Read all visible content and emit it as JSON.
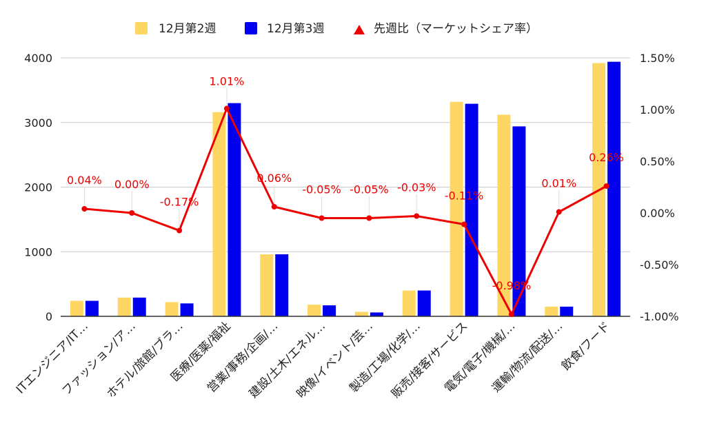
{
  "chart_data": {
    "type": "bar",
    "categories": [
      "ITエンジニア/IT…",
      "ファッション/ア…",
      "ホテル/旅館/ブラ…",
      "医療/医薬/福祉",
      "営業/事務/企画/…",
      "建設/土木/エネル…",
      "映像/イベント/芸…",
      "製造/工場/化学/…",
      "販売/接客/サービス",
      "電気/電子/機械/…",
      "運輸/物流/配送/…",
      "飲食/フード"
    ],
    "series": [
      {
        "name": "12月第2週",
        "type": "bar",
        "axis": "left",
        "color": "#FDD663",
        "values": [
          240,
          290,
          220,
          3160,
          960,
          180,
          70,
          400,
          3320,
          3120,
          150,
          3920
        ]
      },
      {
        "name": "12月第3週",
        "type": "bar",
        "axis": "left",
        "color": "#0000EE",
        "values": [
          240,
          290,
          200,
          3300,
          960,
          170,
          60,
          400,
          3290,
          2940,
          150,
          3940
        ]
      },
      {
        "name": "先週比（マーケットシェア率）",
        "type": "line",
        "axis": "right",
        "color": "#EE0000",
        "values": [
          0.04,
          0.0,
          -0.17,
          1.01,
          0.06,
          -0.05,
          -0.05,
          -0.03,
          -0.11,
          -0.98,
          0.01,
          0.26
        ],
        "labels": [
          "0.04%",
          "0.00%",
          "-0.17%",
          "1.01%",
          "0.06%",
          "-0.05%",
          "-0.05%",
          "-0.03%",
          "-0.11%",
          "-0.98%",
          "0.01%",
          "0.26%"
        ]
      }
    ],
    "y_left": {
      "min": 0,
      "max": 4000,
      "ticks": [
        "0",
        "1000",
        "2000",
        "3000",
        "4000"
      ]
    },
    "y_right": {
      "min": -1.0,
      "max": 1.5,
      "ticks": [
        "-1.00%",
        "-0.50%",
        "0.00%",
        "0.50%",
        "1.00%",
        "1.50%"
      ]
    },
    "legend_position": "top",
    "grid": true,
    "title": ""
  }
}
